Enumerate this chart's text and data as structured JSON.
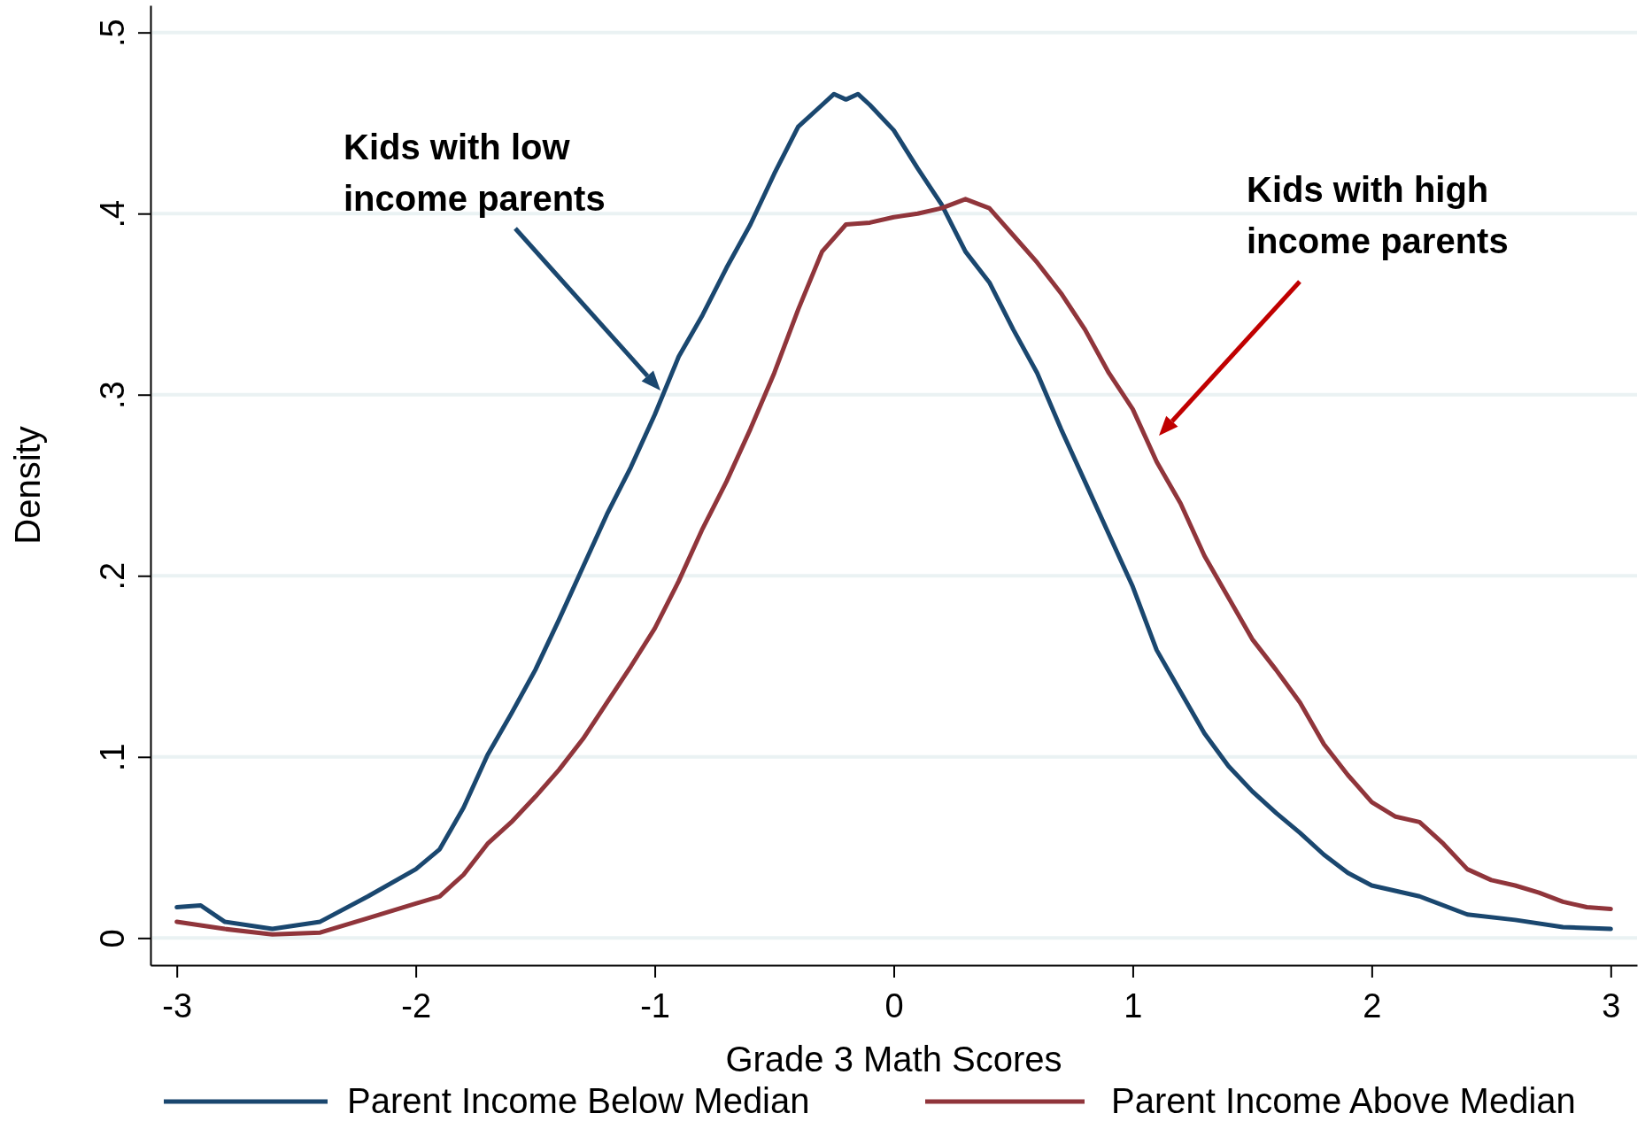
{
  "chart_data": {
    "type": "line",
    "xlabel": "Grade 3 Math Scores",
    "ylabel": "Density",
    "xlim": [
      -3.11,
      3.11
    ],
    "xticks": [
      -3,
      -2,
      -1,
      0,
      1,
      2,
      3
    ],
    "ylim": [
      -0.015,
      0.515
    ],
    "yticks": [
      {
        "value": 0,
        "label": "0"
      },
      {
        "value": 0.1,
        "label": ".1"
      },
      {
        "value": 0.2,
        "label": ".2"
      },
      {
        "value": 0.3,
        "label": ".3"
      },
      {
        "value": 0.4,
        "label": ".4"
      },
      {
        "value": 0.5,
        "label": ".5"
      }
    ],
    "grid": "y",
    "legend": "bottom",
    "marker": "none",
    "line_style": "solid",
    "series": [
      {
        "name": "Parent Income Below Median",
        "color": "#1a476f",
        "x": [
          -3,
          -2.9,
          -2.8,
          -2.6,
          -2.4,
          -2.2,
          -2,
          -1.9,
          -1.8,
          -1.7,
          -1.6,
          -1.5,
          -1.4,
          -1.3,
          -1.2,
          -1.1,
          -1,
          -0.9,
          -0.8,
          -0.7,
          -0.6,
          -0.5,
          -0.4,
          -0.3,
          -0.25,
          -0.2,
          -0.15,
          -0.1,
          0,
          0.1,
          0.2,
          0.3,
          0.4,
          0.5,
          0.6,
          0.7,
          0.8,
          0.9,
          1,
          1.1,
          1.2,
          1.3,
          1.4,
          1.5,
          1.6,
          1.7,
          1.8,
          1.9,
          2,
          2.2,
          2.4,
          2.6,
          2.8,
          3
        ],
        "values": [
          0.017,
          0.018,
          0.009,
          0.005,
          0.009,
          0.023,
          0.038,
          0.049,
          0.072,
          0.101,
          0.124,
          0.148,
          0.176,
          0.205,
          0.234,
          0.26,
          0.289,
          0.321,
          0.344,
          0.37,
          0.394,
          0.422,
          0.448,
          0.46,
          0.466,
          0.463,
          0.466,
          0.46,
          0.446,
          0.425,
          0.405,
          0.379,
          0.362,
          0.336,
          0.312,
          0.281,
          0.252,
          0.223,
          0.194,
          0.159,
          0.136,
          0.113,
          0.095,
          0.081,
          0.069,
          0.058,
          0.046,
          0.036,
          0.029,
          0.023,
          0.013,
          0.01,
          0.006,
          0.005
        ]
      },
      {
        "name": "Parent Income Above Median",
        "color": "#90353b",
        "x": [
          -3,
          -2.8,
          -2.6,
          -2.4,
          -2.2,
          -2,
          -1.9,
          -1.8,
          -1.7,
          -1.6,
          -1.5,
          -1.4,
          -1.3,
          -1.2,
          -1.1,
          -1,
          -0.9,
          -0.8,
          -0.7,
          -0.6,
          -0.5,
          -0.4,
          -0.3,
          -0.2,
          -0.1,
          0,
          0.1,
          0.2,
          0.3,
          0.4,
          0.5,
          0.6,
          0.7,
          0.8,
          0.9,
          1,
          1.1,
          1.2,
          1.3,
          1.4,
          1.5,
          1.6,
          1.7,
          1.8,
          1.9,
          2,
          2.1,
          2.2,
          2.3,
          2.4,
          2.5,
          2.6,
          2.7,
          2.8,
          2.9,
          3
        ],
        "values": [
          0.009,
          0.005,
          0.002,
          0.003,
          0.011,
          0.019,
          0.023,
          0.035,
          0.052,
          0.064,
          0.078,
          0.093,
          0.11,
          0.13,
          0.15,
          0.171,
          0.197,
          0.226,
          0.252,
          0.281,
          0.312,
          0.347,
          0.379,
          0.394,
          0.395,
          0.398,
          0.4,
          0.403,
          0.408,
          0.403,
          0.388,
          0.373,
          0.356,
          0.336,
          0.312,
          0.292,
          0.263,
          0.24,
          0.211,
          0.188,
          0.165,
          0.148,
          0.13,
          0.107,
          0.09,
          0.075,
          0.067,
          0.064,
          0.052,
          0.038,
          0.032,
          0.029,
          0.025,
          0.02,
          0.017,
          0.016
        ]
      }
    ],
    "annotations": [
      "Kids with low income parents",
      "Kids with high income parents"
    ]
  }
}
